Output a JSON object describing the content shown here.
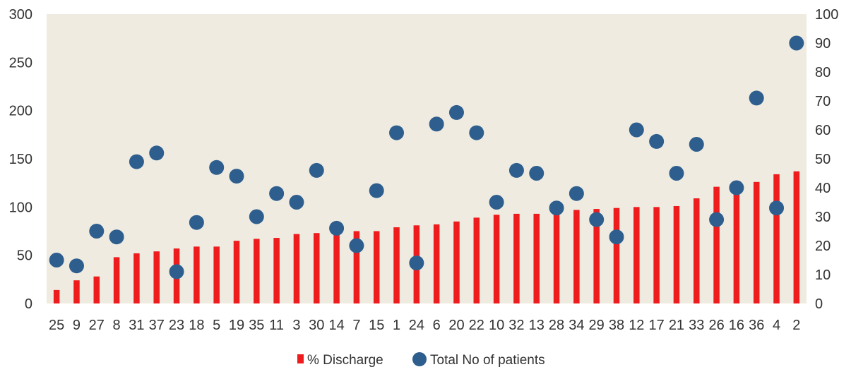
{
  "chart_data": {
    "type": "bar",
    "categories": [
      "25",
      "9",
      "27",
      "8",
      "31",
      "37",
      "23",
      "18",
      "5",
      "19",
      "35",
      "11",
      "3",
      "30",
      "14",
      "7",
      "15",
      "1",
      "24",
      "6",
      "20",
      "22",
      "10",
      "32",
      "13",
      "28",
      "34",
      "29",
      "38",
      "12",
      "17",
      "21",
      "33",
      "26",
      "16",
      "36",
      "4",
      "2"
    ],
    "series": [
      {
        "name": "% Discharge",
        "type": "bar",
        "axis": "left",
        "color": "#ee1c1c",
        "values": [
          14,
          24,
          28,
          48,
          52,
          54,
          57,
          59,
          59,
          65,
          67,
          68,
          72,
          73,
          74,
          75,
          75,
          79,
          81,
          82,
          85,
          89,
          92,
          93,
          93,
          96,
          97,
          98,
          99,
          100,
          100,
          101,
          109,
          121,
          122,
          126,
          134,
          137
        ]
      },
      {
        "name": "Total No of patients",
        "type": "scatter",
        "axis": "right",
        "color": "#2e5e8e",
        "values": [
          15,
          13,
          25,
          23,
          49,
          52,
          11,
          28,
          47,
          44,
          30,
          38,
          35,
          46,
          26,
          20,
          39,
          59,
          14,
          62,
          66,
          59,
          35,
          46,
          45,
          33,
          38,
          29,
          23,
          60,
          56,
          45,
          55,
          29,
          40,
          71,
          33,
          90
        ]
      }
    ],
    "left_axis": {
      "ylim": [
        0,
        300
      ],
      "ticks": [
        "0",
        "50",
        "100",
        "150",
        "200",
        "250",
        "300"
      ]
    },
    "right_axis": {
      "ylim": [
        0,
        100
      ],
      "ticks": [
        "0",
        "10",
        "20",
        "30",
        "40",
        "50",
        "60",
        "70",
        "80",
        "90",
        "100"
      ]
    },
    "grid": false,
    "plot_background": "#efebe1",
    "legend": {
      "position": "bottom-center",
      "items": [
        {
          "label": "% Discharge",
          "marker": "square",
          "color": "#ee1c1c"
        },
        {
          "label": "Total No of patients",
          "marker": "circle",
          "color": "#2e5e8e"
        }
      ]
    },
    "title": "",
    "xlabel": "",
    "ylabel": ""
  }
}
